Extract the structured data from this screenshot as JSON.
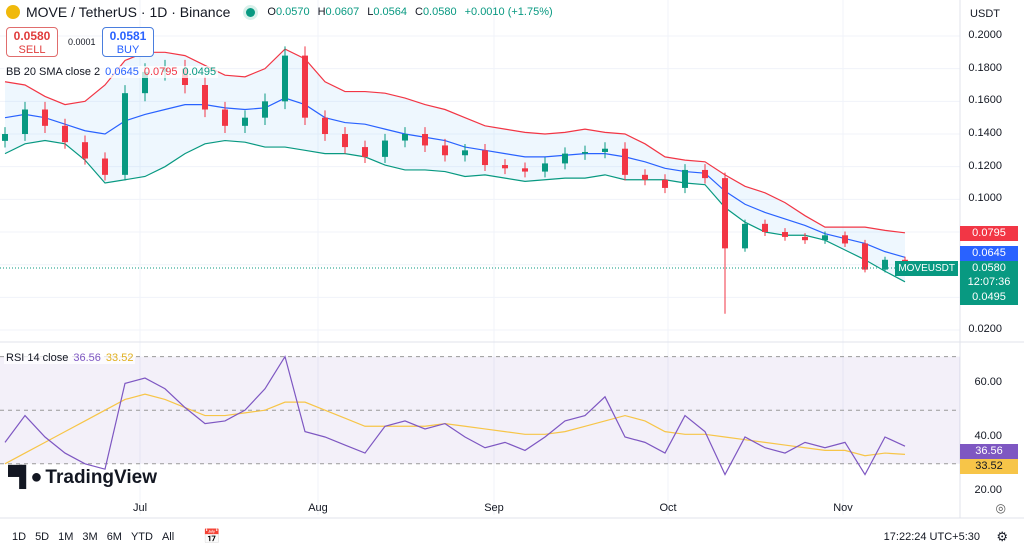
{
  "header": {
    "symbol": "MOVE / TetherUS · 1D · Binance",
    "open": "0.0570",
    "high": "0.0607",
    "low": "0.0564",
    "close": "0.0580",
    "change": "+0.0010 (+1.75%)",
    "o_label": "O",
    "h_label": "H",
    "l_label": "L",
    "c_label": "C"
  },
  "trade": {
    "sell_price": "0.0580",
    "sell_label": "SELL",
    "spread": "0.0001",
    "buy_price": "0.0581",
    "buy_label": "BUY"
  },
  "bb_legend": {
    "title": "BB 20 SMA close 2",
    "basis": "0.0645",
    "upper": "0.0795",
    "lower": "0.0495"
  },
  "rsi_legend": {
    "title": "RSI 14 close",
    "rsi": "36.56",
    "ma": "33.52"
  },
  "currency": "USDT",
  "price_axis": [
    "0.2000",
    "0.1800",
    "0.1600",
    "0.1400",
    "0.1200",
    "0.1000",
    "0.0200"
  ],
  "rsi_axis": [
    "60.00",
    "40.00",
    "20.00"
  ],
  "tags": {
    "upper": "0.0795",
    "basis": "0.0645",
    "symbol": "MOVEUSDT",
    "price": "0.0580",
    "countdown": "12:07:36",
    "lower": "0.0495"
  },
  "x_axis": [
    {
      "label": "Jul",
      "i": 6.75
    },
    {
      "label": "Aug",
      "i": 15.65
    },
    {
      "label": "Sep",
      "i": 24.45
    },
    {
      "label": "Oct",
      "i": 33.15
    },
    {
      "label": "Nov",
      "i": 41.9
    }
  ],
  "timeframes": [
    "1D",
    "5D",
    "1M",
    "3M",
    "6M",
    "YTD",
    "All"
  ],
  "time": "17:22:24 UTC+5:30",
  "brand": "TradingView",
  "colors": {
    "up": "#089981",
    "down": "#f23645",
    "basis": "#2962ff",
    "upper": "#f23645",
    "lower": "#089981",
    "rsi": "#7e57c2",
    "rsi_ma": "#f7c548"
  },
  "chart_data": {
    "type": "candlestick",
    "closes": [
      0.14,
      0.155,
      0.145,
      0.135,
      0.125,
      0.115,
      0.165,
      0.178,
      0.18,
      0.17,
      0.155,
      0.145,
      0.15,
      0.16,
      0.188,
      0.15,
      0.14,
      0.132,
      0.126,
      0.136,
      0.14,
      0.133,
      0.127,
      0.13,
      0.121,
      0.119,
      0.117,
      0.122,
      0.128,
      0.129,
      0.131,
      0.115,
      0.112,
      0.107,
      0.118,
      0.113,
      0.07,
      0.085,
      0.08,
      0.077,
      0.075,
      0.078,
      0.073,
      0.057,
      0.063,
      0.058
    ],
    "bb_upper": [
      0.172,
      0.17,
      0.163,
      0.158,
      0.16,
      0.17,
      0.185,
      0.19,
      0.19,
      0.188,
      0.182,
      0.176,
      0.175,
      0.18,
      0.192,
      0.186,
      0.172,
      0.166,
      0.166,
      0.165,
      0.162,
      0.158,
      0.155,
      0.15,
      0.145,
      0.143,
      0.141,
      0.14,
      0.141,
      0.143,
      0.141,
      0.14,
      0.134,
      0.126,
      0.124,
      0.123,
      0.115,
      0.108,
      0.104,
      0.098,
      0.09,
      0.083,
      0.083,
      0.083,
      0.081,
      0.0795
    ],
    "bb_basis": [
      0.15,
      0.152,
      0.15,
      0.146,
      0.142,
      0.14,
      0.148,
      0.152,
      0.155,
      0.158,
      0.158,
      0.156,
      0.155,
      0.156,
      0.162,
      0.158,
      0.15,
      0.147,
      0.146,
      0.143,
      0.14,
      0.138,
      0.136,
      0.132,
      0.13,
      0.128,
      0.126,
      0.126,
      0.127,
      0.128,
      0.128,
      0.126,
      0.123,
      0.119,
      0.117,
      0.116,
      0.105,
      0.097,
      0.092,
      0.088,
      0.084,
      0.079,
      0.076,
      0.073,
      0.068,
      0.0645
    ],
    "bb_lower": [
      0.128,
      0.134,
      0.136,
      0.134,
      0.124,
      0.11,
      0.112,
      0.114,
      0.12,
      0.128,
      0.134,
      0.136,
      0.135,
      0.132,
      0.132,
      0.13,
      0.128,
      0.128,
      0.126,
      0.121,
      0.118,
      0.118,
      0.117,
      0.114,
      0.115,
      0.113,
      0.111,
      0.112,
      0.113,
      0.113,
      0.115,
      0.112,
      0.112,
      0.112,
      0.11,
      0.109,
      0.095,
      0.086,
      0.08,
      0.078,
      0.078,
      0.075,
      0.069,
      0.063,
      0.056,
      0.0495
    ],
    "rsi": [
      38,
      48,
      40,
      34,
      30,
      28,
      60,
      62,
      58,
      51,
      45,
      46,
      50,
      58,
      70,
      42,
      40,
      37,
      34,
      44,
      46,
      43,
      45,
      40,
      36,
      38,
      35,
      40,
      46,
      48,
      55,
      40,
      38,
      34,
      48,
      42,
      26,
      40,
      36,
      34,
      38,
      36,
      38,
      26,
      40,
      36.56
    ],
    "rsi_ma": [
      30,
      34,
      38,
      42,
      46,
      50,
      54,
      56,
      54,
      51,
      48,
      48,
      49,
      50,
      53,
      53,
      50,
      47,
      44,
      44,
      44,
      44,
      45,
      44,
      43,
      42,
      41,
      41,
      42,
      44,
      46,
      48,
      46,
      42,
      41,
      41,
      40,
      39,
      38,
      37,
      36,
      35,
      35,
      33,
      34,
      33.52
    ],
    "ylim": [
      0.01,
      0.21
    ],
    "rsi_ylim": [
      15,
      75
    ],
    "rsi_levels": [
      70,
      50,
      30
    ]
  }
}
